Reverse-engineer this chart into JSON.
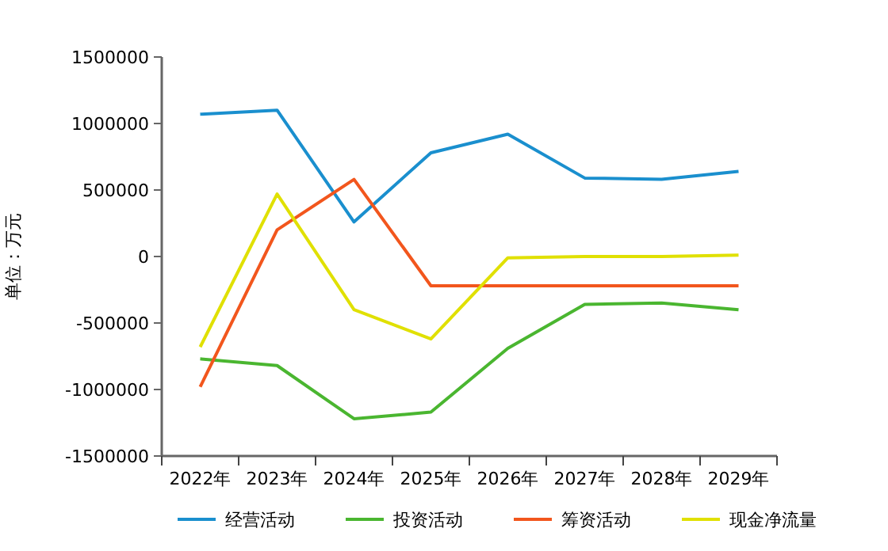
{
  "chart_data": {
    "type": "line",
    "ylabel": "单位：万元",
    "categories": [
      "2022年",
      "2023年",
      "2024年",
      "2025年",
      "2026年",
      "2027年",
      "2028年",
      "2029年"
    ],
    "ylim": [
      -1500000,
      1500000
    ],
    "yticks": [
      -1500000,
      -1000000,
      -500000,
      0,
      500000,
      1000000,
      1500000
    ],
    "grid": false,
    "legend": "bottom",
    "marker": "none",
    "line_style": "solid",
    "series": [
      {
        "name": "经营活动",
        "color": "#1a8fce",
        "values": [
          1070000,
          1100000,
          260000,
          780000,
          920000,
          590000,
          580000,
          640000
        ]
      },
      {
        "name": "投资活动",
        "color": "#4ab630",
        "values": [
          -770000,
          -820000,
          -1220000,
          -1170000,
          -690000,
          -360000,
          -350000,
          -400000
        ]
      },
      {
        "name": "筹资活动",
        "color": "#f2561d",
        "values": [
          -980000,
          200000,
          580000,
          -220000,
          -220000,
          -220000,
          -220000,
          -220000
        ]
      },
      {
        "name": "现金净流量",
        "color": "#e0e000",
        "values": [
          -680000,
          470000,
          -400000,
          -620000,
          -10000,
          0,
          0,
          10000
        ]
      }
    ]
  }
}
